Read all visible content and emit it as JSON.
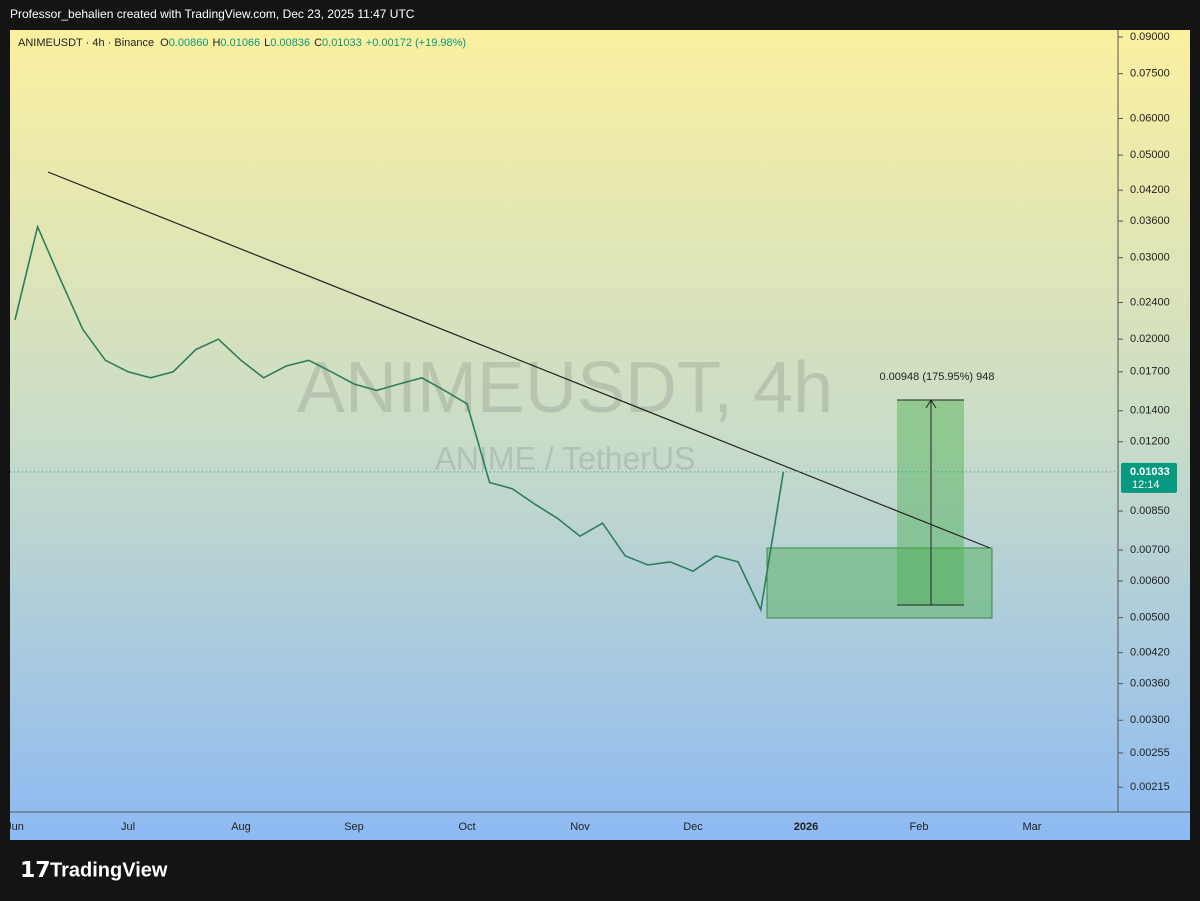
{
  "header": {
    "attribution": "Professor_behalien created with TradingView.com, Dec 23, 2025 11:47 UTC"
  },
  "legend": {
    "symbol": "ANIMEUSDT · 4h · Binance",
    "ohlc": [
      {
        "key": "O",
        "value": "0.00860"
      },
      {
        "key": "H",
        "value": "0.01066"
      },
      {
        "key": "L",
        "value": "0.00836"
      },
      {
        "key": "C",
        "value": "0.01033"
      }
    ],
    "change": "+0.00172 (+19.98%)"
  },
  "watermark": {
    "title": "ANIMEUSDT, 4h",
    "subtitle": "ANIME / TetherUS"
  },
  "price_label": {
    "value": 0.01033,
    "label": "0.01033",
    "countdown": "12:14"
  },
  "measure_label": "0.00948 (175.95%) 948",
  "footer": {
    "brand": "TradingView"
  },
  "chart_data": {
    "type": "line",
    "log_scale": true,
    "grid": false,
    "color": "#2e7d5b",
    "categories": [
      "Jun",
      null,
      null,
      null,
      null,
      "Jul",
      null,
      null,
      null,
      null,
      "Aug",
      null,
      null,
      null,
      null,
      "Sep",
      null,
      null,
      null,
      null,
      "Oct",
      null,
      null,
      null,
      null,
      "Nov",
      null,
      null,
      null,
      null,
      "Dec",
      null,
      null,
      null,
      null,
      "2026",
      null,
      null,
      null,
      null,
      "Feb",
      null,
      null,
      null,
      null,
      "Mar",
      null,
      null,
      null,
      null
    ],
    "values": [
      0.022,
      0.035,
      0.027,
      0.021,
      0.018,
      0.017,
      0.0165,
      0.017,
      0.019,
      0.02,
      0.018,
      0.0165,
      0.0175,
      0.018,
      0.017,
      0.016,
      0.0155,
      0.016,
      0.0165,
      0.0155,
      0.0145,
      0.0098,
      0.0095,
      0.0088,
      0.0082,
      0.0075,
      0.008,
      0.0068,
      0.0065,
      0.0066,
      0.0063,
      0.0068,
      0.0066,
      0.0052,
      0.01033,
      null,
      null,
      null,
      null,
      null,
      null,
      null,
      null,
      null,
      null,
      null,
      null,
      null,
      null,
      null
    ],
    "ylim": [
      0.0019,
      0.0932
    ],
    "yticks": [
      {
        "value": 0.09,
        "label": "0.09000"
      },
      {
        "value": 0.075,
        "label": "0.07500"
      },
      {
        "value": 0.06,
        "label": "0.06000"
      },
      {
        "value": 0.05,
        "label": "0.05000"
      },
      {
        "value": 0.042,
        "label": "0.04200"
      },
      {
        "value": 0.036,
        "label": "0.03600"
      },
      {
        "value": 0.03,
        "label": "0.03000"
      },
      {
        "value": 0.024,
        "label": "0.02400"
      },
      {
        "value": 0.02,
        "label": "0.02000"
      },
      {
        "value": 0.017,
        "label": "0.01700"
      },
      {
        "value": 0.014,
        "label": "0.01400"
      },
      {
        "value": 0.012,
        "label": "0.01200"
      },
      {
        "value": 0.0085,
        "label": "0.00850"
      },
      {
        "value": 0.007,
        "label": "0.00700"
      },
      {
        "value": 0.006,
        "label": "0.00600"
      },
      {
        "value": 0.005,
        "label": "0.00500"
      },
      {
        "value": 0.0042,
        "label": "0.00420"
      },
      {
        "value": 0.0036,
        "label": "0.00360"
      },
      {
        "value": 0.003,
        "label": "0.00300"
      },
      {
        "value": 0.00255,
        "label": "0.00255"
      },
      {
        "value": 0.00215,
        "label": "0.00215"
      }
    ]
  }
}
